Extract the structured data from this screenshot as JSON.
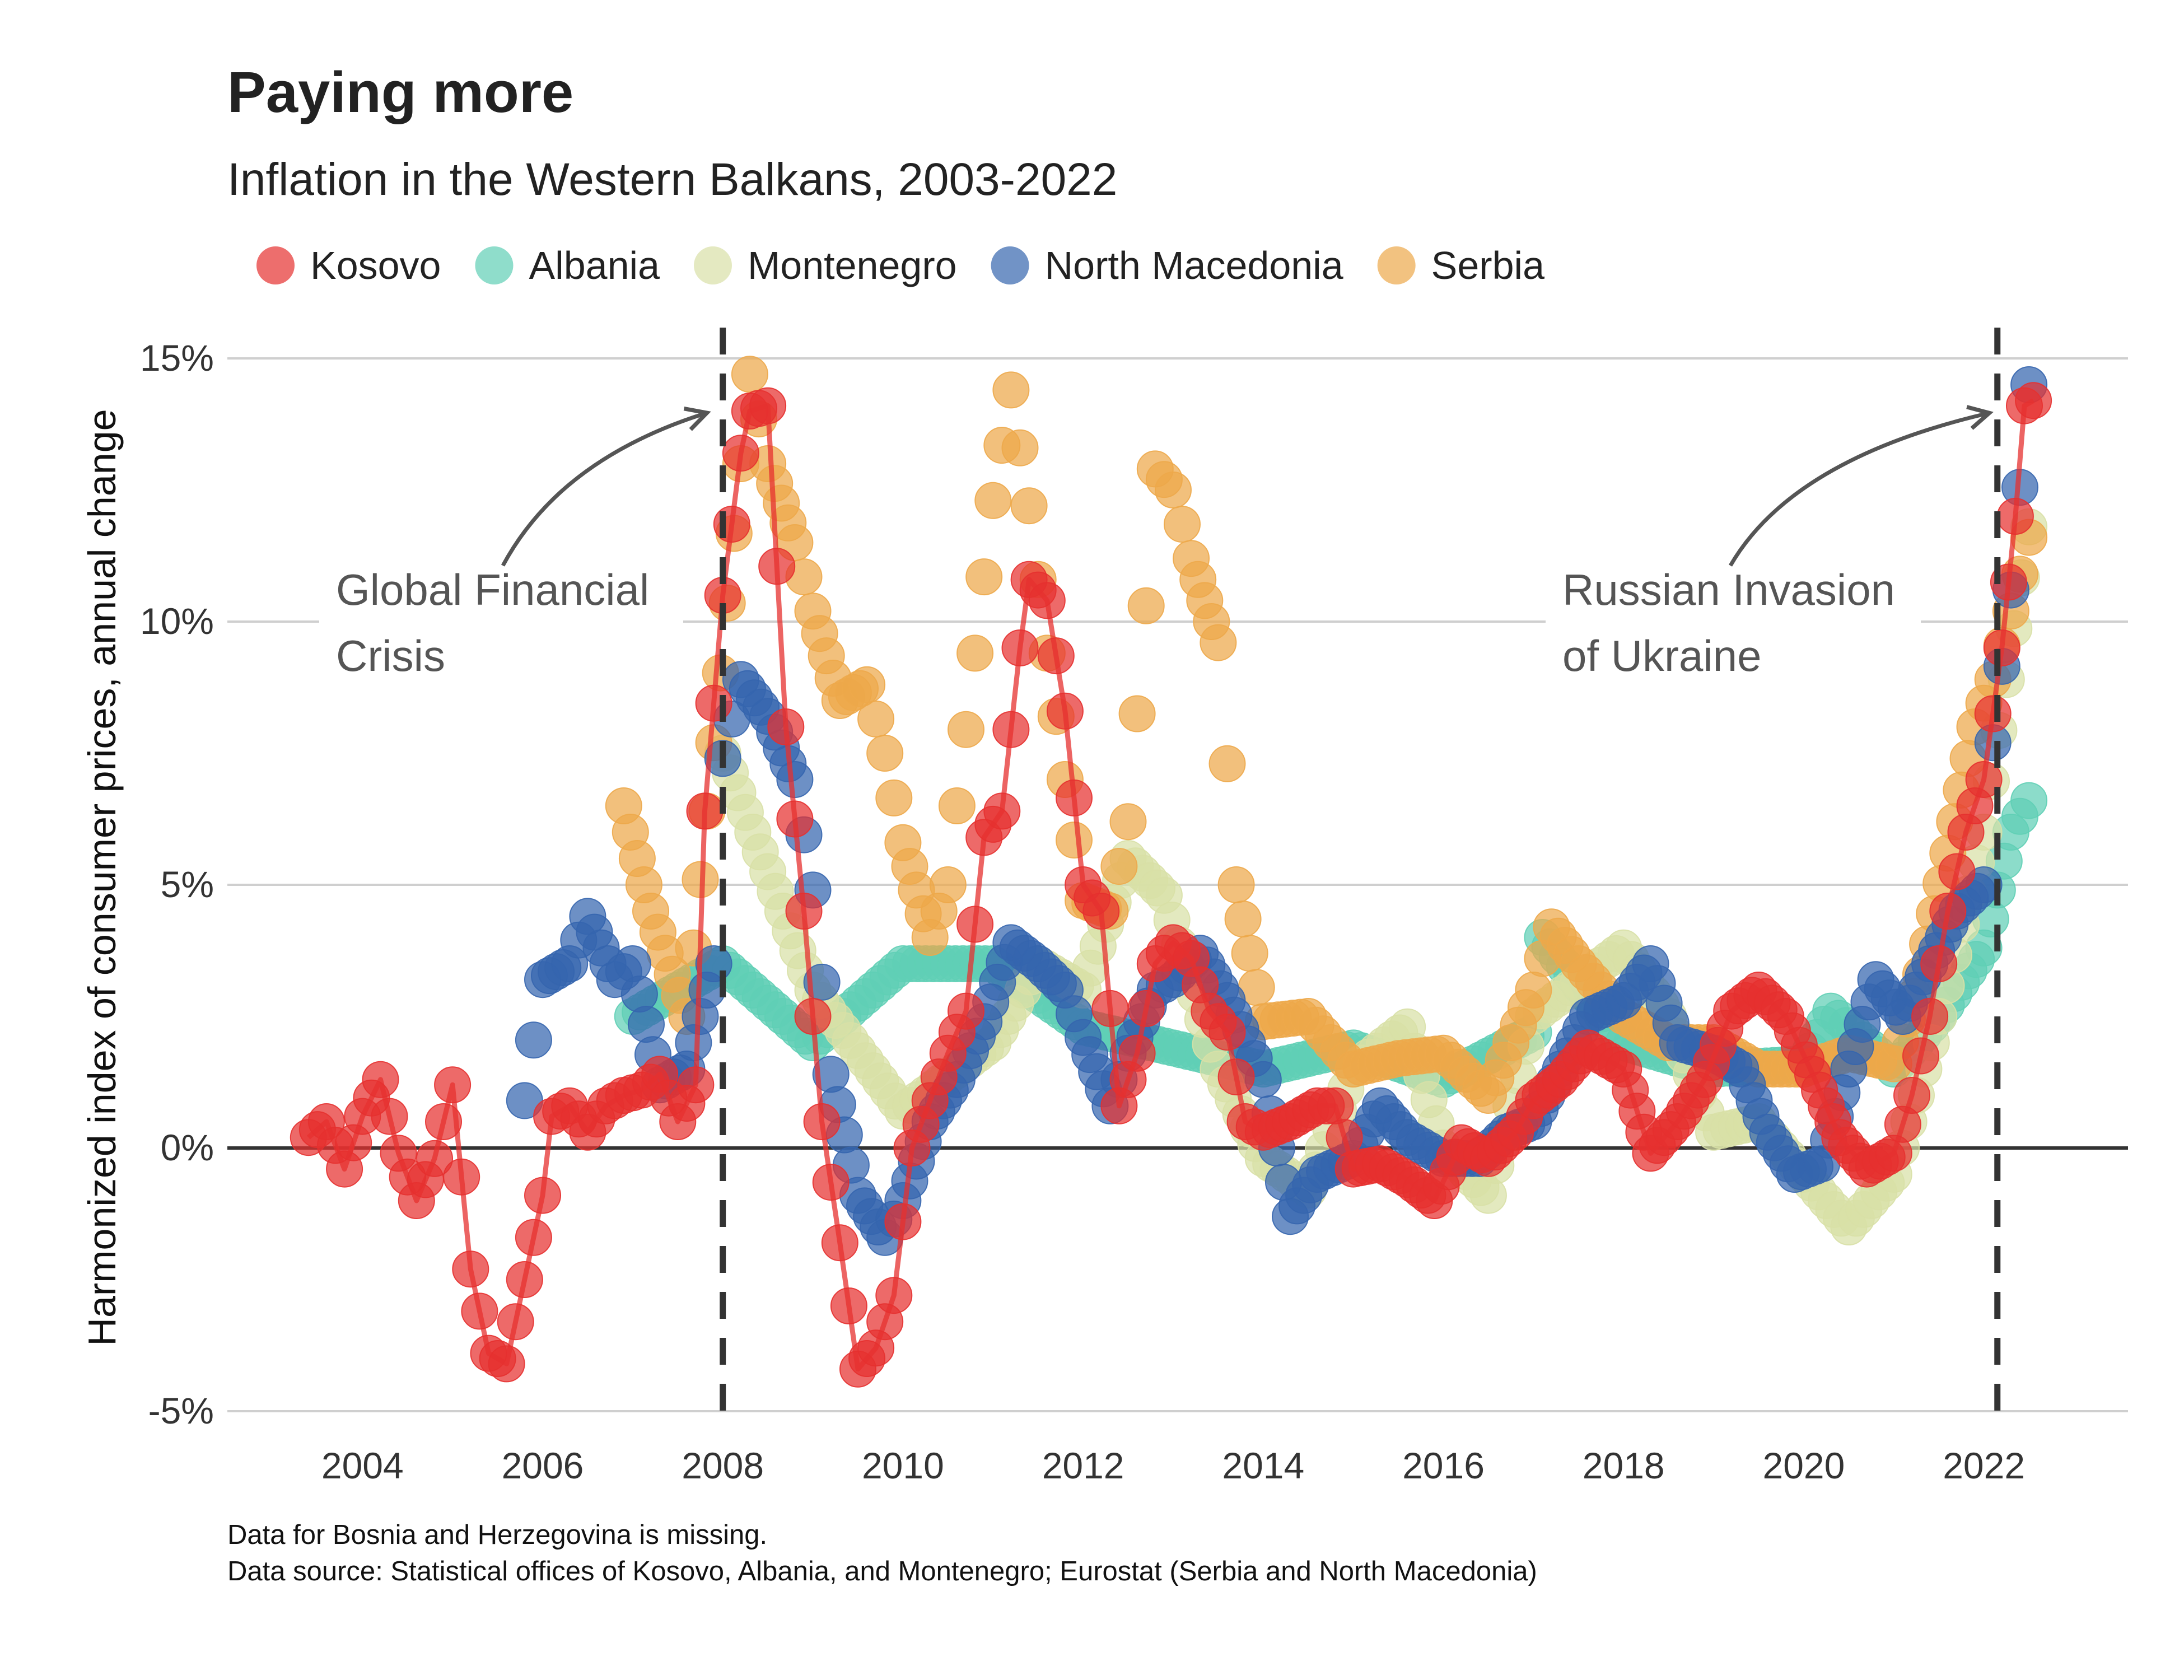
{
  "chart_data": {
    "type": "scatter",
    "title": "Paying more",
    "subtitle": "Inflation in the Western Balkans, 2003-2022",
    "ylabel": "Harmonized index of consumer prices, annual change",
    "xlabel": "",
    "xlim": [
      2002.5,
      2023.6
    ],
    "ylim": [
      -5,
      15
    ],
    "x_ticks": [
      {
        "value": 2004,
        "label": "2004"
      },
      {
        "value": 2006,
        "label": "2006"
      },
      {
        "value": 2008,
        "label": "2008"
      },
      {
        "value": 2010,
        "label": "2010"
      },
      {
        "value": 2012,
        "label": "2012"
      },
      {
        "value": 2014,
        "label": "2014"
      },
      {
        "value": 2016,
        "label": "2016"
      },
      {
        "value": 2018,
        "label": "2018"
      },
      {
        "value": 2020,
        "label": "2020"
      },
      {
        "value": 2022,
        "label": "2022"
      }
    ],
    "y_ticks": [
      {
        "value": 15,
        "label": "15%"
      },
      {
        "value": 10,
        "label": "10%"
      },
      {
        "value": 5,
        "label": "5%"
      },
      {
        "value": 0,
        "label": "0%"
      },
      {
        "value": -5,
        "label": "-5%"
      }
    ],
    "grid": "horizontal",
    "legend_position": "top-left",
    "reference_lines": [
      {
        "x": 2008.0,
        "annotation": [
          "Global Financial",
          "Crisis"
        ]
      },
      {
        "x": 2022.15,
        "annotation": [
          "Russian Invasion",
          "of Ukraine"
        ]
      }
    ],
    "notes": [
      "Data for Bosnia and Herzegovina is missing.",
      "Data source: Statistical offices of Kosovo, Albania, and Montenegro; Eurostat (Serbia and North Macedonia)"
    ],
    "series": [
      {
        "name": "Albania",
        "color": "#5fcfb5",
        "line": false,
        "anchors": [
          [
            2007.0,
            2.5
          ],
          [
            2008.0,
            3.5
          ],
          [
            2009.0,
            2.0
          ],
          [
            2010.0,
            3.5
          ],
          [
            2011.0,
            3.5
          ],
          [
            2012.0,
            2.3
          ],
          [
            2013.0,
            1.9
          ],
          [
            2014.0,
            1.5
          ],
          [
            2015.0,
            1.9
          ],
          [
            2016.0,
            1.3
          ],
          [
            2017.0,
            2.2
          ],
          [
            2017.1,
            4.0
          ],
          [
            2018.0,
            2.0
          ],
          [
            2019.0,
            1.5
          ],
          [
            2020.0,
            1.6
          ],
          [
            2020.3,
            2.6
          ],
          [
            2021.0,
            1.5
          ],
          [
            2021.5,
            2.5
          ],
          [
            2022.0,
            3.8
          ],
          [
            2022.3,
            6.0
          ],
          [
            2022.5,
            6.6
          ]
        ]
      },
      {
        "name": "Montenegro",
        "color": "#d8e0a6",
        "line": false,
        "anchors": [
          [
            2008.0,
            7.5
          ],
          [
            2009.0,
            3.0
          ],
          [
            2010.0,
            0.7
          ],
          [
            2011.0,
            2.0
          ],
          [
            2011.5,
            3.5
          ],
          [
            2012.0,
            3.0
          ],
          [
            2012.5,
            5.5
          ],
          [
            2012.9,
            4.8
          ],
          [
            2013.5,
            1.5
          ],
          [
            2014.0,
            -0.2
          ],
          [
            2014.5,
            -0.8
          ],
          [
            2015.0,
            1.5
          ],
          [
            2015.6,
            2.3
          ],
          [
            2016.0,
            0.0
          ],
          [
            2016.5,
            -0.9
          ],
          [
            2017.0,
            2.5
          ],
          [
            2018.0,
            3.8
          ],
          [
            2018.5,
            2.5
          ],
          [
            2019.0,
            0.3
          ],
          [
            2019.5,
            0.5
          ],
          [
            2020.0,
            -0.5
          ],
          [
            2020.5,
            -1.5
          ],
          [
            2021.0,
            -0.5
          ],
          [
            2021.5,
            2.5
          ],
          [
            2022.0,
            6.0
          ],
          [
            2022.5,
            11.8
          ]
        ]
      },
      {
        "name": "Serbia",
        "color": "#eda84a",
        "line": false,
        "anchors": [
          [
            2006.9,
            6.5
          ],
          [
            2007.2,
            4.5
          ],
          [
            2007.6,
            2.5
          ],
          [
            2007.9,
            7.7
          ],
          [
            2008.2,
            13.0
          ],
          [
            2008.3,
            14.7
          ],
          [
            2008.5,
            13.0
          ],
          [
            2008.8,
            11.5
          ],
          [
            2009.0,
            10.2
          ],
          [
            2009.3,
            8.5
          ],
          [
            2009.6,
            8.8
          ],
          [
            2009.8,
            7.5
          ],
          [
            2010.0,
            5.8
          ],
          [
            2010.3,
            4.0
          ],
          [
            2010.5,
            5.0
          ],
          [
            2010.6,
            6.5
          ],
          [
            2010.8,
            9.4
          ],
          [
            2011.0,
            12.3
          ],
          [
            2011.2,
            14.4
          ],
          [
            2011.4,
            12.2
          ],
          [
            2011.6,
            9.4
          ],
          [
            2011.8,
            7.0
          ],
          [
            2012.0,
            4.7
          ],
          [
            2012.3,
            4.5
          ],
          [
            2012.5,
            6.2
          ],
          [
            2012.7,
            10.3
          ],
          [
            2012.8,
            12.9
          ],
          [
            2013.0,
            12.5
          ],
          [
            2013.2,
            11.2
          ],
          [
            2013.5,
            9.6
          ],
          [
            2013.7,
            5.0
          ],
          [
            2014.0,
            2.4
          ],
          [
            2014.5,
            2.5
          ],
          [
            2015.0,
            1.5
          ],
          [
            2015.5,
            1.7
          ],
          [
            2016.0,
            1.8
          ],
          [
            2016.5,
            1.0
          ],
          [
            2017.0,
            3.0
          ],
          [
            2017.2,
            4.2
          ],
          [
            2017.5,
            3.5
          ],
          [
            2018.0,
            2.5
          ],
          [
            2018.5,
            2.0
          ],
          [
            2019.0,
            2.0
          ],
          [
            2019.5,
            1.5
          ],
          [
            2020.0,
            1.5
          ],
          [
            2020.5,
            1.8
          ],
          [
            2021.0,
            1.6
          ],
          [
            2021.3,
            3.3
          ],
          [
            2021.6,
            5.6
          ],
          [
            2021.9,
            8.0
          ],
          [
            2022.1,
            8.9
          ],
          [
            2022.3,
            10.2
          ],
          [
            2022.5,
            11.6
          ]
        ]
      },
      {
        "name": "North Macedonia",
        "color": "#3565ae",
        "line": false,
        "anchors": [
          [
            2005.8,
            0.9
          ],
          [
            2006.0,
            3.2
          ],
          [
            2006.3,
            3.5
          ],
          [
            2006.5,
            4.4
          ],
          [
            2006.8,
            3.2
          ],
          [
            2007.0,
            3.5
          ],
          [
            2007.3,
            1.2
          ],
          [
            2007.6,
            1.5
          ],
          [
            2007.9,
            3.5
          ],
          [
            2008.0,
            7.4
          ],
          [
            2008.2,
            8.9
          ],
          [
            2008.5,
            8.2
          ],
          [
            2008.8,
            7.0
          ],
          [
            2009.0,
            4.9
          ],
          [
            2009.2,
            1.4
          ],
          [
            2009.5,
            -0.9
          ],
          [
            2009.8,
            -1.7
          ],
          [
            2010.0,
            -1.0
          ],
          [
            2010.3,
            0.5
          ],
          [
            2010.6,
            1.3
          ],
          [
            2010.9,
            2.4
          ],
          [
            2011.2,
            3.9
          ],
          [
            2011.5,
            3.5
          ],
          [
            2011.8,
            3.0
          ],
          [
            2012.0,
            2.1
          ],
          [
            2012.3,
            0.8
          ],
          [
            2012.5,
            1.8
          ],
          [
            2012.8,
            3.0
          ],
          [
            2013.0,
            3.2
          ],
          [
            2013.3,
            3.7
          ],
          [
            2013.6,
            2.8
          ],
          [
            2013.9,
            1.7
          ],
          [
            2014.0,
            1.3
          ],
          [
            2014.3,
            -1.3
          ],
          [
            2014.6,
            -0.5
          ],
          [
            2015.0,
            -0.2
          ],
          [
            2015.3,
            0.8
          ],
          [
            2015.6,
            0.2
          ],
          [
            2016.0,
            -0.2
          ],
          [
            2016.4,
            -0.2
          ],
          [
            2016.7,
            0.3
          ],
          [
            2017.0,
            0.5
          ],
          [
            2017.3,
            1.5
          ],
          [
            2017.6,
            2.5
          ],
          [
            2018.0,
            2.8
          ],
          [
            2018.3,
            3.5
          ],
          [
            2018.6,
            2.0
          ],
          [
            2019.0,
            1.8
          ],
          [
            2019.3,
            1.5
          ],
          [
            2019.6,
            0.3
          ],
          [
            2019.9,
            -0.5
          ],
          [
            2020.2,
            -0.3
          ],
          [
            2020.5,
            1.5
          ],
          [
            2020.8,
            3.2
          ],
          [
            2021.1,
            2.5
          ],
          [
            2021.4,
            3.5
          ],
          [
            2021.7,
            4.5
          ],
          [
            2022.0,
            5.0
          ],
          [
            2022.1,
            7.7
          ],
          [
            2022.3,
            10.6
          ],
          [
            2022.5,
            14.5
          ]
        ]
      },
      {
        "name": "Kosovo",
        "color": "#e6302f",
        "line": true,
        "anchors": [
          [
            2003.4,
            0.2
          ],
          [
            2003.6,
            0.5
          ],
          [
            2003.8,
            -0.4
          ],
          [
            2004.0,
            0.6
          ],
          [
            2004.2,
            1.3
          ],
          [
            2004.4,
            -0.1
          ],
          [
            2004.6,
            -1.0
          ],
          [
            2004.8,
            -0.2
          ],
          [
            2005.0,
            1.2
          ],
          [
            2005.2,
            -2.3
          ],
          [
            2005.4,
            -3.9
          ],
          [
            2005.6,
            -4.1
          ],
          [
            2005.8,
            -2.5
          ],
          [
            2006.0,
            -0.9
          ],
          [
            2006.1,
            0.6
          ],
          [
            2006.3,
            0.8
          ],
          [
            2006.5,
            0.3
          ],
          [
            2006.7,
            0.8
          ],
          [
            2006.9,
            1.0
          ],
          [
            2007.1,
            1.1
          ],
          [
            2007.3,
            1.4
          ],
          [
            2007.5,
            0.5
          ],
          [
            2007.7,
            1.2
          ],
          [
            2007.8,
            6.4
          ],
          [
            2008.0,
            10.5
          ],
          [
            2008.2,
            13.2
          ],
          [
            2008.3,
            14.0
          ],
          [
            2008.5,
            14.1
          ],
          [
            2008.7,
            8.0
          ],
          [
            2008.9,
            4.5
          ],
          [
            2009.1,
            0.5
          ],
          [
            2009.3,
            -1.8
          ],
          [
            2009.5,
            -4.2
          ],
          [
            2009.7,
            -3.8
          ],
          [
            2009.9,
            -2.8
          ],
          [
            2010.1,
            0.0
          ],
          [
            2010.3,
            0.9
          ],
          [
            2010.5,
            1.8
          ],
          [
            2010.7,
            2.6
          ],
          [
            2010.9,
            5.9
          ],
          [
            2011.1,
            6.4
          ],
          [
            2011.3,
            9.5
          ],
          [
            2011.4,
            10.8
          ],
          [
            2011.6,
            10.4
          ],
          [
            2011.8,
            8.3
          ],
          [
            2012.0,
            5.0
          ],
          [
            2012.2,
            4.5
          ],
          [
            2012.4,
            0.8
          ],
          [
            2012.6,
            1.8
          ],
          [
            2012.8,
            3.5
          ],
          [
            2013.0,
            3.9
          ],
          [
            2013.2,
            3.6
          ],
          [
            2013.4,
            2.6
          ],
          [
            2013.6,
            2.2
          ],
          [
            2013.8,
            0.5
          ],
          [
            2014.0,
            0.3
          ],
          [
            2014.3,
            0.5
          ],
          [
            2014.6,
            0.8
          ],
          [
            2014.8,
            0.8
          ],
          [
            2015.0,
            -0.4
          ],
          [
            2015.3,
            -0.3
          ],
          [
            2015.6,
            -0.6
          ],
          [
            2015.9,
            -1.0
          ],
          [
            2016.2,
            0.1
          ],
          [
            2016.5,
            -0.2
          ],
          [
            2016.8,
            0.3
          ],
          [
            2017.0,
            0.9
          ],
          [
            2017.3,
            1.3
          ],
          [
            2017.6,
            1.9
          ],
          [
            2018.0,
            1.5
          ],
          [
            2018.3,
            -0.1
          ],
          [
            2018.6,
            0.5
          ],
          [
            2018.9,
            1.3
          ],
          [
            2019.2,
            2.6
          ],
          [
            2019.5,
            3.0
          ],
          [
            2019.8,
            2.5
          ],
          [
            2020.1,
            1.4
          ],
          [
            2020.4,
            0.2
          ],
          [
            2020.7,
            -0.4
          ],
          [
            2021.0,
            -0.1
          ],
          [
            2021.2,
            1.0
          ],
          [
            2021.4,
            2.5
          ],
          [
            2021.6,
            4.5
          ],
          [
            2021.8,
            6.0
          ],
          [
            2022.0,
            7.0
          ],
          [
            2022.2,
            9.5
          ],
          [
            2022.35,
            12.0
          ],
          [
            2022.45,
            14.1
          ],
          [
            2022.55,
            14.2
          ]
        ]
      }
    ]
  }
}
